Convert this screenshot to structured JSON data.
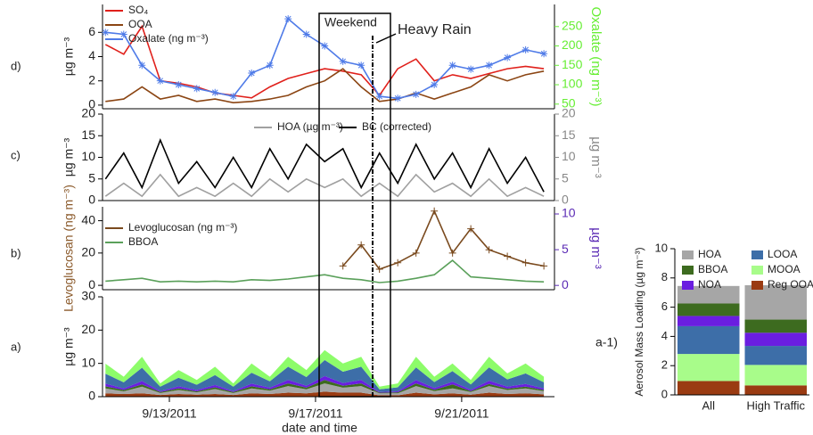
{
  "chart_data": [
    {
      "type": "line",
      "label": "d)",
      "legend": "upper left",
      "x": [
        11.25,
        11.75,
        12.25,
        12.75,
        13.25,
        13.75,
        14.25,
        14.75,
        15.25,
        15.75,
        16.25,
        16.75,
        17.25,
        17.75,
        18.25,
        18.75,
        19.25,
        19.75,
        20.25,
        20.75,
        21.25,
        21.75,
        22.25,
        22.75,
        23.25
      ],
      "xlim": [
        11.17,
        23.54
      ],
      "ylim": [
        -0.3,
        8.3
      ],
      "yticks": [
        0,
        2,
        4,
        6
      ],
      "ylabel": "µg m⁻³",
      "y2lim": [
        38,
        307
      ],
      "y2ticks": [
        50,
        100,
        150,
        200,
        250
      ],
      "y2label": "Oxalate (ng m⁻³)",
      "y2color": "#66ee33",
      "annotations": [
        "Weekend",
        "Heavy Rain"
      ],
      "series": [
        {
          "name": "SO₄",
          "color": "#e0201b",
          "values": [
            5.0,
            4.2,
            6.5,
            2.0,
            1.8,
            1.5,
            1.0,
            0.8,
            0.6,
            1.5,
            2.2,
            2.6,
            3.0,
            2.8,
            2.5,
            0.8,
            3.0,
            3.8,
            2.0,
            2.5,
            2.2,
            2.6,
            3.0,
            3.2,
            3.0
          ]
        },
        {
          "name": "OOA",
          "color": "#8b4513",
          "values": [
            0.3,
            0.5,
            1.5,
            0.5,
            0.8,
            0.3,
            0.5,
            0.2,
            0.3,
            0.5,
            0.8,
            1.5,
            2.0,
            3.0,
            1.5,
            0.3,
            0.5,
            1.0,
            0.5,
            1.0,
            1.5,
            2.5,
            2.0,
            2.5,
            2.8
          ]
        },
        {
          "name": "Oxalate (ng m⁻³)",
          "color": "#4f7be8",
          "marker": "asterisk",
          "axis": "y2",
          "values": [
            235,
            230,
            150,
            110,
            100,
            90,
            80,
            70,
            130,
            150,
            270,
            230,
            200,
            160,
            150,
            70,
            65,
            75,
            100,
            150,
            140,
            150,
            170,
            190,
            180
          ]
        }
      ]
    },
    {
      "type": "line",
      "label": "c)",
      "legend": "upper center",
      "x": [
        11.25,
        11.75,
        12.25,
        12.75,
        13.25,
        13.75,
        14.25,
        14.75,
        15.25,
        15.75,
        16.25,
        16.75,
        17.25,
        17.75,
        18.25,
        18.75,
        19.25,
        19.75,
        20.25,
        20.75,
        21.25,
        21.75,
        22.25,
        22.75,
        23.25
      ],
      "xlim": [
        11.17,
        23.54
      ],
      "ylim": [
        0,
        20
      ],
      "yticks": [
        0,
        5,
        10,
        15,
        20
      ],
      "ylabel": "µg m⁻³",
      "y2lim": [
        0,
        20
      ],
      "y2ticks": [
        0,
        5,
        10,
        15,
        20
      ],
      "y2label": "µg m⁻³",
      "y2color": "#888888",
      "series": [
        {
          "name": "HOA (µg m⁻³)",
          "color": "#a0a0a0",
          "axis": "y2",
          "values": [
            1,
            4,
            1,
            6,
            1,
            3,
            1,
            4,
            1,
            5,
            2,
            5,
            3,
            5,
            1,
            4,
            1,
            6,
            2,
            4,
            1,
            5,
            1,
            3,
            1
          ]
        },
        {
          "name": "BC (corrected)",
          "color": "#000000",
          "values": [
            5,
            11,
            3,
            14,
            4,
            9,
            3,
            10,
            3,
            12,
            5,
            13,
            9,
            12,
            3,
            11,
            4,
            13,
            5,
            11,
            3,
            12,
            4,
            10,
            2
          ]
        }
      ]
    },
    {
      "type": "line",
      "label": "b)",
      "legend": "upper left",
      "x": [
        11.25,
        11.75,
        12.25,
        12.75,
        13.25,
        13.75,
        14.25,
        14.75,
        15.25,
        15.75,
        16.25,
        16.75,
        17.25,
        17.75,
        18.25,
        18.75,
        19.25,
        19.75,
        20.25,
        20.75,
        21.25,
        21.75,
        22.25,
        22.75,
        23.25
      ],
      "xlim": [
        11.17,
        23.54
      ],
      "ylim": [
        -2.7,
        48.6
      ],
      "yticks": [
        0,
        20,
        40
      ],
      "ylabel": "Levoglucosan (ng m⁻³)",
      "ycolor": "#8b5a2b",
      "y2lim": [
        -0.6,
        11.0
      ],
      "y2ticks": [
        0,
        5,
        10
      ],
      "y2label": "µg m⁻³",
      "y2color": "#5b2bb5",
      "series": [
        {
          "name": "Levoglucosan (ng m⁻³)",
          "color": "#7a4a1e",
          "marker": "plus",
          "values": [
            null,
            null,
            null,
            null,
            null,
            null,
            null,
            null,
            null,
            null,
            null,
            null,
            null,
            12,
            25,
            10,
            14,
            20,
            46,
            20,
            35,
            22,
            18,
            14,
            12
          ]
        },
        {
          "name": "BBOA",
          "color": "#5aa05a",
          "axis": "y2",
          "values": [
            0.6,
            0.8,
            1.0,
            0.5,
            0.6,
            0.5,
            0.6,
            0.5,
            0.8,
            0.7,
            0.9,
            1.2,
            1.5,
            1.0,
            0.8,
            0.4,
            0.6,
            1.0,
            1.5,
            3.5,
            1.2,
            1.0,
            0.8,
            0.6,
            0.5
          ]
        }
      ]
    },
    {
      "type": "area",
      "label": "a)",
      "xlabel": "date and time",
      "x": [
        11.25,
        11.75,
        12.25,
        12.75,
        13.25,
        13.75,
        14.25,
        14.75,
        15.25,
        15.75,
        16.25,
        16.75,
        17.25,
        17.75,
        18.25,
        18.75,
        19.25,
        19.75,
        20.25,
        20.75,
        21.25,
        21.75,
        22.25,
        22.75,
        23.25
      ],
      "xlim": [
        11.17,
        23.54
      ],
      "xticks": [
        {
          "value": 13,
          "label": "9/13/2011"
        },
        {
          "value": 17,
          "label": "9/17/2011"
        },
        {
          "value": 21,
          "label": "9/21/2011"
        }
      ],
      "ylim": [
        0,
        30
      ],
      "yticks": [
        0,
        10,
        20,
        30
      ],
      "ylabel": "µg m⁻³",
      "series": [
        {
          "color": "#9a3b12",
          "values": [
            1,
            0.8,
            1,
            0.5,
            0.8,
            0.6,
            0.8,
            0.5,
            1,
            0.8,
            1.2,
            1,
            1.5,
            1.2,
            1.2,
            0.4,
            0.4,
            1.2,
            0.7,
            1,
            0.6,
            1.2,
            0.8,
            1,
            0.7
          ]
        },
        {
          "color": "#a6a6a6",
          "values": [
            1.5,
            0.8,
            2,
            0.6,
            1.2,
            0.7,
            1.5,
            0.6,
            1.5,
            1,
            2,
            1.2,
            2.5,
            1.5,
            2,
            0.6,
            0.6,
            2,
            1,
            1.5,
            0.8,
            2,
            1.2,
            1.5,
            1
          ]
        },
        {
          "color": "#3d6b1f",
          "values": [
            0.6,
            0.4,
            0.7,
            0.3,
            0.5,
            0.3,
            0.5,
            0.3,
            0.6,
            0.4,
            0.8,
            0.5,
            1,
            0.6,
            0.8,
            0.2,
            0.3,
            0.8,
            0.4,
            1.2,
            0.3,
            0.6,
            0.4,
            0.5,
            0.3
          ]
        },
        {
          "color": "#6a1ee0",
          "values": [
            0.8,
            0.5,
            1,
            0.3,
            0.6,
            0.4,
            0.7,
            0.3,
            0.8,
            0.5,
            1,
            0.6,
            1.2,
            0.8,
            1,
            0.2,
            0.3,
            1,
            0.5,
            0.8,
            0.4,
            1,
            0.6,
            0.8,
            0.5
          ]
        },
        {
          "color": "#3d6ea8",
          "values": [
            3,
            1.8,
            4,
            1.3,
            2.6,
            1.6,
            3,
            1.3,
            3.3,
            1.9,
            4,
            2.6,
            4.8,
            3.4,
            4,
            0.8,
            1.2,
            3.8,
            1.8,
            3.2,
            1.6,
            4,
            2.2,
            3.2,
            1.8
          ]
        },
        {
          "color": "#8dfc6a",
          "values": [
            3,
            1.7,
            3.3,
            1,
            2.3,
            1.4,
            2.5,
            1,
            2.8,
            1.4,
            3,
            2.1,
            3,
            2.5,
            3,
            0.8,
            1.2,
            3.2,
            1.6,
            2.3,
            1.3,
            3.2,
            1.8,
            3,
            1.7
          ]
        }
      ]
    },
    {
      "type": "bar",
      "label": "a-1)",
      "stacked": true,
      "categories": [
        "All",
        "High Traffic"
      ],
      "ylim": [
        0,
        10
      ],
      "yticks": [
        0,
        2,
        4,
        6,
        8,
        10
      ],
      "ylabel": "Aerosol Mass Loading (µg m⁻³)",
      "series": [
        {
          "name": "HOA",
          "color": "#a6a6a6",
          "values": [
            1.2,
            2.35
          ]
        },
        {
          "name": "BBOA",
          "color": "#3d6b1f",
          "values": [
            0.85,
            0.9
          ]
        },
        {
          "name": "NOA",
          "color": "#6a1ee0",
          "values": [
            0.7,
            0.9
          ]
        },
        {
          "name": "LOOA",
          "color": "#3d6ea8",
          "values": [
            1.9,
            1.3
          ]
        },
        {
          "name": "MOOA",
          "color": "#a8fc8a",
          "values": [
            1.85,
            1.4
          ]
        },
        {
          "name": "Reg OOA",
          "color": "#9a3b12",
          "values": [
            0.95,
            0.65
          ]
        }
      ]
    }
  ]
}
